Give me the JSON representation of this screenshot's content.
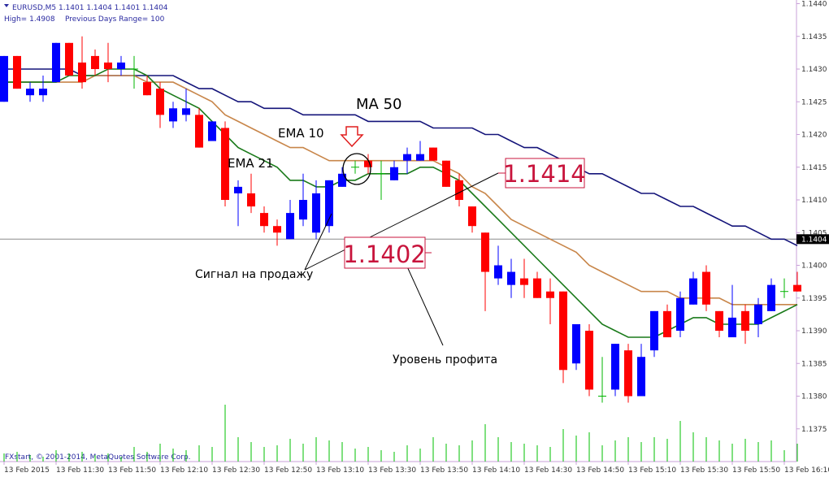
{
  "header": {
    "symbol_line": "EURUSD,M5  1.1401 1.1404 1.1401 1.1404",
    "high": "High= 1.4908",
    "range": "Previous Days Range= 100"
  },
  "footer": "FXstart, © 2001-2014, MetaQuotes Software Corp.",
  "annotations": [
    "1.1414",
    "1.1402",
    "Сигнал на продажу",
    "Уровень профита"
  ],
  "chart_data": {
    "type": "candlestick",
    "categories": [
      "13 Feb 2015",
      null,
      null,
      null,
      "13 Feb 11:30",
      null,
      null,
      null,
      "13 Feb 11:50",
      null,
      null,
      null,
      "13 Feb 12:10",
      null,
      null,
      null,
      "13 Feb 12:30",
      null,
      null,
      null,
      "13 Feb 12:50",
      null,
      null,
      null,
      "13 Feb 13:10",
      null,
      null,
      null,
      "13 Feb 13:30",
      null,
      null,
      null,
      "13 Feb 13:50",
      null,
      null,
      null,
      "13 Feb 14:10",
      null,
      null,
      null,
      "13 Feb 14:30",
      null,
      null,
      null,
      "13 Feb 14:50",
      null,
      null,
      null,
      "13 Feb 15:10",
      null,
      null,
      null,
      "13 Feb 15:30",
      null,
      null,
      null,
      "13 Feb 15:50",
      null,
      null,
      null,
      "13 Feb 16:10",
      null
    ],
    "open": [
      1.1425,
      1.1432,
      1.1426,
      1.1426,
      1.1428,
      1.1434,
      1.1431,
      1.1432,
      1.1431,
      1.143,
      1.143,
      1.1428,
      1.1427,
      1.1422,
      1.1423,
      1.1423,
      1.1419,
      1.1421,
      1.1411,
      1.1411,
      1.1408,
      1.1406,
      1.1404,
      1.1407,
      1.1405,
      1.1406,
      1.1412,
      1.1415,
      1.1416,
      1.1414,
      1.1413,
      1.1416,
      1.1416,
      1.1418,
      1.1416,
      1.1413,
      1.1409,
      1.1405,
      1.1398,
      1.1397,
      1.1398,
      1.1398,
      1.1396,
      1.1396,
      1.1385,
      1.139,
      1.138,
      1.1381,
      1.1387,
      1.138,
      1.1387,
      1.1393,
      1.139,
      1.1394,
      1.1399,
      1.1393,
      1.1389,
      1.1393,
      1.1391,
      1.1393,
      1.1396,
      1.1397
    ],
    "high": [
      1.1432,
      1.1432,
      1.1428,
      1.1429,
      1.1434,
      1.1434,
      1.1435,
      1.1433,
      1.1434,
      1.1432,
      1.1432,
      1.1429,
      1.1428,
      1.1425,
      1.1427,
      1.1424,
      1.1422,
      1.1422,
      1.1413,
      1.1414,
      1.1409,
      1.1407,
      1.141,
      1.1414,
      1.1413,
      1.1413,
      1.1415,
      1.1416,
      1.1417,
      1.1416,
      1.1416,
      1.1418,
      1.1419,
      1.1418,
      1.1416,
      1.1414,
      1.1409,
      1.1405,
      1.1403,
      1.1401,
      1.1401,
      1.1399,
      1.1398,
      1.1396,
      1.1391,
      1.1391,
      1.1386,
      1.1388,
      1.1388,
      1.1388,
      1.1393,
      1.1394,
      1.1396,
      1.1399,
      1.14,
      1.1393,
      1.1397,
      1.1394,
      1.1395,
      1.1398,
      1.1398,
      1.1399
    ],
    "low": [
      1.1425,
      1.1427,
      1.1425,
      1.1425,
      1.1428,
      1.1429,
      1.1427,
      1.1429,
      1.1428,
      1.1429,
      1.1427,
      1.1426,
      1.1421,
      1.1421,
      1.1422,
      1.1418,
      1.1419,
      1.1409,
      1.1406,
      1.1408,
      1.1405,
      1.1403,
      1.1404,
      1.1406,
      1.1404,
      1.1405,
      1.1412,
      1.1414,
      1.1414,
      1.141,
      1.1413,
      1.1414,
      1.1416,
      1.1416,
      1.1412,
      1.1409,
      1.1405,
      1.1393,
      1.1397,
      1.1395,
      1.1395,
      1.1395,
      1.1391,
      1.1382,
      1.1384,
      1.138,
      1.1379,
      1.138,
      1.1379,
      1.138,
      1.1386,
      1.1389,
      1.1389,
      1.1394,
      1.1393,
      1.1389,
      1.1389,
      1.1388,
      1.1389,
      1.1393,
      1.1395,
      1.1396
    ],
    "close": [
      1.1432,
      1.1427,
      1.1427,
      1.1427,
      1.1434,
      1.1429,
      1.1428,
      1.143,
      1.143,
      1.1431,
      1.143,
      1.1426,
      1.1423,
      1.1424,
      1.1424,
      1.1418,
      1.1422,
      1.141,
      1.1412,
      1.1409,
      1.1406,
      1.1405,
      1.1408,
      1.141,
      1.1411,
      1.1413,
      1.1414,
      1.1415,
      1.1415,
      1.1414,
      1.1415,
      1.1417,
      1.1417,
      1.1416,
      1.1412,
      1.141,
      1.1406,
      1.1399,
      1.14,
      1.1399,
      1.1397,
      1.1395,
      1.1395,
      1.1384,
      1.1391,
      1.1381,
      1.138,
      1.1388,
      1.138,
      1.1386,
      1.1393,
      1.1389,
      1.1395,
      1.1398,
      1.1394,
      1.139,
      1.1392,
      1.139,
      1.1394,
      1.1397,
      1.1396,
      1.1396
    ],
    "volume": [
      10,
      12,
      8,
      6,
      14,
      10,
      12,
      8,
      10,
      6,
      18,
      12,
      22,
      16,
      14,
      20,
      18,
      70,
      30,
      24,
      18,
      20,
      28,
      22,
      30,
      26,
      24,
      16,
      18,
      14,
      12,
      20,
      16,
      30,
      22,
      20,
      26,
      46,
      30,
      24,
      22,
      20,
      18,
      40,
      32,
      36,
      20,
      26,
      30,
      24,
      30,
      28,
      50,
      36,
      30,
      26,
      22,
      28,
      24,
      26,
      14,
      22
    ],
    "up_color": "#0000ff",
    "down_color": "#ff0000",
    "doji_color": "#00b400",
    "volume_color": "#00c000",
    "series": [
      {
        "name": "MA 50",
        "color": "#14147a",
        "values": [
          1.143,
          1.143,
          1.143,
          1.143,
          1.143,
          1.143,
          1.1429,
          1.1429,
          1.1429,
          1.1429,
          1.1429,
          1.1429,
          1.1429,
          1.1429,
          1.1428,
          1.1427,
          1.1427,
          1.1426,
          1.1425,
          1.1425,
          1.1424,
          1.1424,
          1.1424,
          1.1423,
          1.1423,
          1.1423,
          1.1423,
          1.1423,
          1.1422,
          1.1422,
          1.1422,
          1.1422,
          1.1422,
          1.1421,
          1.1421,
          1.1421,
          1.1421,
          1.142,
          1.142,
          1.1419,
          1.1418,
          1.1418,
          1.1417,
          1.1416,
          1.1415,
          1.1414,
          1.1414,
          1.1413,
          1.1412,
          1.1411,
          1.1411,
          1.141,
          1.1409,
          1.1409,
          1.1408,
          1.1407,
          1.1406,
          1.1406,
          1.1405,
          1.1404,
          1.1404,
          1.1403
        ]
      },
      {
        "name": "EMA 10",
        "color": "#c8864a",
        "values": [
          1.1428,
          1.1428,
          1.1428,
          1.1428,
          1.1428,
          1.1428,
          1.1428,
          1.1429,
          1.1429,
          1.1429,
          1.1429,
          1.1428,
          1.1428,
          1.1428,
          1.1427,
          1.1426,
          1.1425,
          1.1423,
          1.1422,
          1.1421,
          1.142,
          1.1419,
          1.1418,
          1.1418,
          1.1417,
          1.1416,
          1.1416,
          1.1416,
          1.1416,
          1.1416,
          1.1416,
          1.1416,
          1.1416,
          1.1416,
          1.1415,
          1.1414,
          1.1412,
          1.1411,
          1.1409,
          1.1407,
          1.1406,
          1.1405,
          1.1404,
          1.1403,
          1.1402,
          1.14,
          1.1399,
          1.1398,
          1.1397,
          1.1396,
          1.1396,
          1.1396,
          1.1395,
          1.1395,
          1.1395,
          1.1395,
          1.1394,
          1.1394,
          1.1394,
          1.1394,
          1.1394,
          1.1394
        ]
      },
      {
        "name": "EMA 21",
        "color": "#1a7a1a",
        "values": [
          1.1428,
          1.1428,
          1.1428,
          1.1428,
          1.1428,
          1.1429,
          1.1429,
          1.1429,
          1.143,
          1.143,
          1.143,
          1.1429,
          1.1427,
          1.1426,
          1.1425,
          1.1424,
          1.1422,
          1.142,
          1.1418,
          1.1417,
          1.1416,
          1.1415,
          1.1413,
          1.1413,
          1.1412,
          1.1412,
          1.1413,
          1.1413,
          1.1414,
          1.1414,
          1.1414,
          1.1414,
          1.1415,
          1.1415,
          1.1414,
          1.1413,
          1.1411,
          1.1409,
          1.1407,
          1.1405,
          1.1403,
          1.1401,
          1.1399,
          1.1397,
          1.1395,
          1.1393,
          1.1391,
          1.139,
          1.1389,
          1.1389,
          1.1389,
          1.139,
          1.1391,
          1.1392,
          1.1392,
          1.1391,
          1.1391,
          1.1391,
          1.1391,
          1.1392,
          1.1393,
          1.1394
        ]
      }
    ],
    "ylim": [
      1.137,
      1.1441
    ],
    "yticks": [
      1.1375,
      {
        "value": 1.138,
        "label": "1.1380"
      },
      1.1385,
      {
        "value": 1.139,
        "label": "1.1390"
      },
      1.1395,
      {
        "value": 1.14,
        "label": "1.1400"
      },
      1.1405,
      {
        "value": 1.141,
        "label": "1.1410"
      },
      1.1415,
      {
        "value": 1.142,
        "label": "1.1420"
      },
      1.1425,
      {
        "value": 1.143,
        "label": "1.1430"
      },
      1.1435,
      {
        "value": 1.144,
        "label": "1.1440"
      }
    ],
    "price_line": {
      "value": 1.1404,
      "label": "1.1404"
    }
  }
}
